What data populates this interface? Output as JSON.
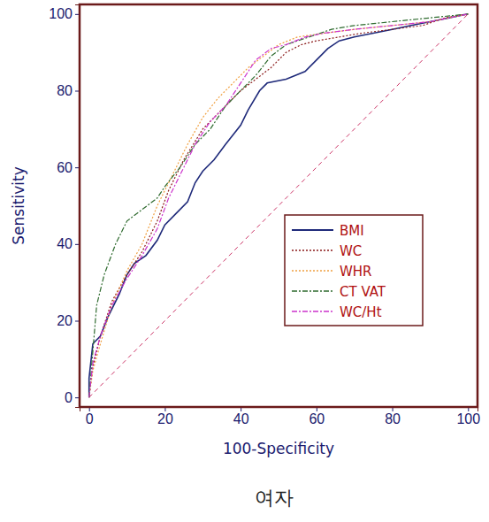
{
  "chart_data": {
    "type": "line",
    "title": "여자",
    "x_label": "100-Specificity",
    "y_label": "Sensitivity",
    "xlim": [
      -2.5,
      102.5
    ],
    "ylim": [
      -2.5,
      102.5
    ],
    "xticks": [
      0,
      20,
      40,
      60,
      80,
      100
    ],
    "yticks": [
      0,
      20,
      40,
      60,
      80,
      100
    ],
    "grid": false,
    "legend": "lower right",
    "reference_line": {
      "x": [
        0,
        100
      ],
      "values": [
        0,
        100
      ],
      "color": "#cc3366",
      "line_style": "dashed"
    },
    "series": [
      {
        "name": "BMI",
        "color": "#1f2a7a",
        "line_style": "solid",
        "x": [
          0,
          0,
          1,
          3,
          5,
          8,
          10,
          12,
          15,
          18,
          20,
          23,
          26,
          28,
          30,
          33,
          36,
          40,
          42,
          45,
          47,
          52,
          57,
          60,
          63,
          66,
          70,
          75,
          80,
          85,
          90,
          95,
          100
        ],
        "values": [
          0,
          5,
          14,
          16,
          21,
          27,
          32,
          35,
          37,
          41,
          45,
          48,
          51,
          56,
          59,
          62,
          66,
          71,
          75,
          80,
          82,
          83,
          85,
          88,
          91,
          93,
          94,
          95,
          96,
          97,
          98,
          99,
          100
        ]
      },
      {
        "name": "WC",
        "color": "#8b1a1a",
        "line_style": "dotted",
        "x": [
          0,
          1,
          3,
          6,
          10,
          14,
          18,
          21,
          25,
          30,
          35,
          40,
          44,
          48,
          52,
          56,
          60,
          66,
          72,
          80,
          88,
          94,
          100
        ],
        "values": [
          0,
          8,
          16,
          25,
          32,
          38,
          46,
          54,
          62,
          70,
          75,
          80,
          83,
          86,
          90,
          92,
          93,
          94,
          95,
          96,
          97,
          99,
          100
        ]
      },
      {
        "name": "WHR",
        "color": "#f0a040",
        "line_style": "dotted",
        "x": [
          0,
          1,
          3,
          6,
          10,
          14,
          18,
          22,
          26,
          30,
          34,
          38,
          42,
          46,
          50,
          55,
          62,
          70,
          80,
          90,
          100
        ],
        "values": [
          0,
          7,
          14,
          24,
          33,
          40,
          50,
          58,
          66,
          73,
          78,
          82,
          86,
          89,
          92,
          94,
          95,
          96,
          97,
          98,
          100
        ]
      },
      {
        "name": "CT  VAT",
        "color": "#2f6b2f",
        "line_style": "dashdot",
        "x": [
          0,
          1,
          2,
          4,
          7,
          10,
          14,
          18,
          20,
          24,
          28,
          32,
          36,
          40,
          44,
          48,
          52,
          58,
          64,
          70,
          80,
          90,
          100
        ],
        "values": [
          0,
          12,
          24,
          32,
          40,
          46,
          49,
          52,
          55,
          60,
          66,
          70,
          76,
          80,
          84,
          89,
          92,
          94,
          96,
          97,
          98,
          99,
          100
        ]
      },
      {
        "name": "WC/Ht",
        "color": "#cc33cc",
        "line_style": "dashdot",
        "x": [
          0,
          1,
          3,
          6,
          10,
          14,
          18,
          21,
          25,
          28,
          32,
          36,
          40,
          44,
          48,
          52,
          57,
          62,
          70,
          80,
          90,
          100
        ],
        "values": [
          0,
          9,
          16,
          24,
          31,
          37,
          44,
          52,
          60,
          66,
          72,
          76,
          82,
          88,
          91,
          92,
          94,
          95,
          96,
          97,
          98,
          100
        ]
      }
    ]
  }
}
